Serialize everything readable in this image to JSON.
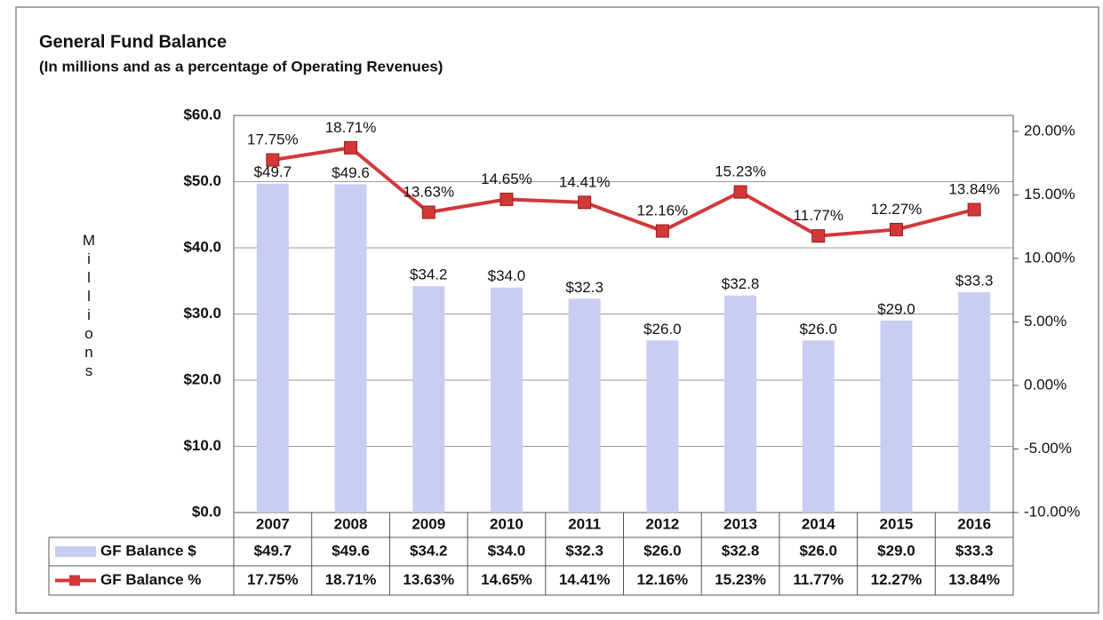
{
  "chart_data": {
    "type": "bar",
    "title": "General Fund Balance",
    "subtitle": "(In millions and as a percentage of Operating Revenues)",
    "y_label": "Millions",
    "categories": [
      "2007",
      "2008",
      "2009",
      "2010",
      "2011",
      "2012",
      "2013",
      "2014",
      "2015",
      "2016"
    ],
    "series": [
      {
        "name": "GF Balance $",
        "type": "bar",
        "color": "#c9cdf1",
        "values": [
          49.7,
          49.6,
          34.2,
          34.0,
          32.3,
          26.0,
          32.8,
          26.0,
          29.0,
          33.3
        ],
        "value_labels": [
          "$49.7",
          "$49.6",
          "$34.2",
          "$34.0",
          "$32.3",
          "$26.0",
          "$32.8",
          "$26.0",
          "$29.0",
          "$33.3"
        ]
      },
      {
        "name": "GF Balance %",
        "type": "line",
        "axis": "y2",
        "color": "#d2383a",
        "values": [
          17.75,
          18.71,
          13.63,
          14.65,
          14.41,
          12.16,
          15.23,
          11.77,
          12.27,
          13.84
        ],
        "value_labels": [
          "17.75%",
          "18.71%",
          "13.63%",
          "14.65%",
          "14.41%",
          "12.16%",
          "15.23%",
          "11.77%",
          "12.27%",
          "13.84%"
        ]
      }
    ],
    "ylim": [
      0,
      60
    ],
    "yticks": [
      {
        "value": 0,
        "label": "$0.0"
      },
      {
        "value": 10,
        "label": "$10.0"
      },
      {
        "value": 20,
        "label": "$20.0"
      },
      {
        "value": 30,
        "label": "$30.0"
      },
      {
        "value": 40,
        "label": "$40.0"
      },
      {
        "value": 50,
        "label": "$50.0"
      },
      {
        "value": 60,
        "label": "$60.0"
      }
    ],
    "y2lim": [
      -10,
      21.25
    ],
    "y2ticks": [
      {
        "value": -10,
        "label": "-10.00%"
      },
      {
        "value": -5,
        "label": "-5.00%"
      },
      {
        "value": 0,
        "label": "0.00%"
      },
      {
        "value": 5,
        "label": "5.00%"
      },
      {
        "value": 10,
        "label": "10.00%"
      },
      {
        "value": 15,
        "label": "15.00%"
      },
      {
        "value": 20,
        "label": "20.00%"
      }
    ],
    "grid": true
  }
}
